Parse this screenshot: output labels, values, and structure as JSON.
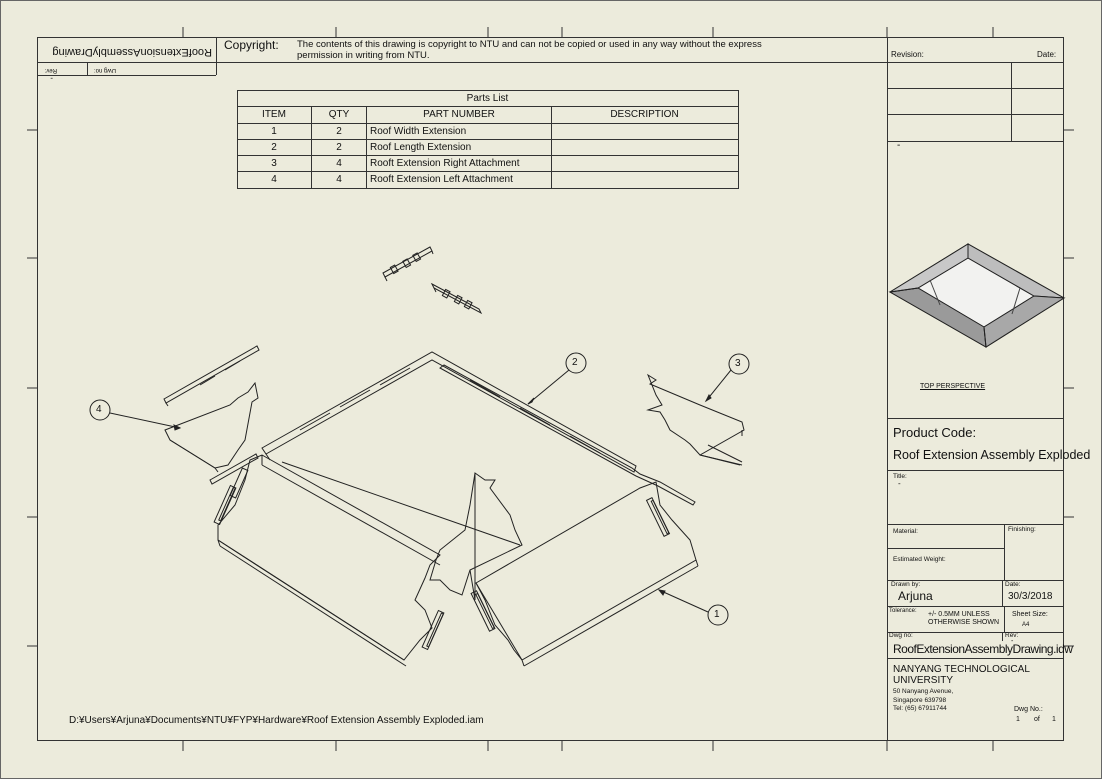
{
  "copyright": {
    "label": "Copyright:",
    "line1": "The contents of this drawing is copyright to NTU and can not be copied or used in any way without the express",
    "line2": "permission in writing from NTU."
  },
  "inverted_block": {
    "drawing_name": "RoofExtensionAssemblyDrawing",
    "rev_label": "Rev:",
    "rev_value": "-",
    "dwg_label": "Dwg no:"
  },
  "parts_list": {
    "title": "Parts List",
    "headers": [
      "ITEM",
      "QTY",
      "PART NUMBER",
      "DESCRIPTION"
    ],
    "rows": [
      {
        "item": "1",
        "qty": "2",
        "part": "Roof Width Extension",
        "desc": ""
      },
      {
        "item": "2",
        "qty": "2",
        "part": "Roof Length Extension",
        "desc": ""
      },
      {
        "item": "3",
        "qty": "4",
        "part": "Rooft Extension Right Attachment",
        "desc": ""
      },
      {
        "item": "4",
        "qty": "4",
        "part": "Rooft Extension Left Attachment",
        "desc": ""
      }
    ]
  },
  "balloons": [
    "1",
    "2",
    "3",
    "4"
  ],
  "file_path": "D:¥Users¥Arjuna¥Documents¥NTU¥FYP¥Hardware¥Roof Extension Assembly Exploded.iam",
  "title_block": {
    "revision_label": "Revision:",
    "date_label": "Date:",
    "revision_value": "-",
    "perspective_caption": "TOP PERSPECTIVE",
    "product_code_label": "Product Code:",
    "product_code_value": "Roof Extension Assembly Exploded",
    "title_label": "Title:",
    "title_value": "-",
    "material_label": "Material:",
    "finishing_label": "Finishing:",
    "weight_label": "Estimated Weight:",
    "drawn_by_label": "Drawn by:",
    "drawn_by_value": "Arjuna",
    "date2_label": "Date:",
    "date2_value": "30/3/2018",
    "tolerance_label": "Tolerance:",
    "tolerance_line1": "+/- 0.5MM UNLESS",
    "tolerance_line2": "OTHERWISE SHOWN",
    "sheet_size_label": "Sheet Size:",
    "sheet_size_value": "A4",
    "dwg_no_label": "Dwg no:",
    "rev_label": "Rev:",
    "rev_value": "-",
    "dwg_no_value": "RoofExtensionAssemblyDrawing.idw",
    "org_line1": "NANYANG TECHNOLOGICAL",
    "org_line2": "UNIVERSITY",
    "addr_line1": "50 Nanyang Avenue,",
    "addr_line2": "Singapore 639798",
    "addr_line3": "Tel: (65) 67911744",
    "sheet_label": "Dwg No.:",
    "sheet_num": "1",
    "sheet_of": "of",
    "sheet_total": "1"
  }
}
